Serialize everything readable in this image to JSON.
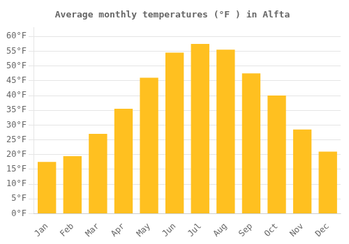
{
  "chart_data": {
    "type": "bar",
    "title": "Average monthly temperatures (°F ) in Alfta",
    "categories": [
      "Jan",
      "Feb",
      "Mar",
      "Apr",
      "May",
      "Jun",
      "Jul",
      "Aug",
      "Sep",
      "Oct",
      "Nov",
      "Dec"
    ],
    "values": [
      17.5,
      19.5,
      27.0,
      35.5,
      46.0,
      54.5,
      57.5,
      55.5,
      47.5,
      40.0,
      28.5,
      21.0
    ],
    "color": "#FFC020",
    "ylim": [
      0,
      63
    ],
    "yticks": [
      {
        "value": 0,
        "label": "0°F"
      },
      {
        "value": 5,
        "label": "5°F"
      },
      {
        "value": 10,
        "label": "10°F"
      },
      {
        "value": 15,
        "label": "15°F"
      },
      {
        "value": 20,
        "label": "20°F"
      },
      {
        "value": 25,
        "label": "25°F"
      },
      {
        "value": 30,
        "label": "30°F"
      },
      {
        "value": 35,
        "label": "35°F"
      },
      {
        "value": 40,
        "label": "40°F"
      },
      {
        "value": 45,
        "label": "45°F"
      },
      {
        "value": 50,
        "label": "50°F"
      },
      {
        "value": 55,
        "label": "55°F"
      },
      {
        "value": 60,
        "label": "60°F"
      }
    ],
    "grid": true
  }
}
